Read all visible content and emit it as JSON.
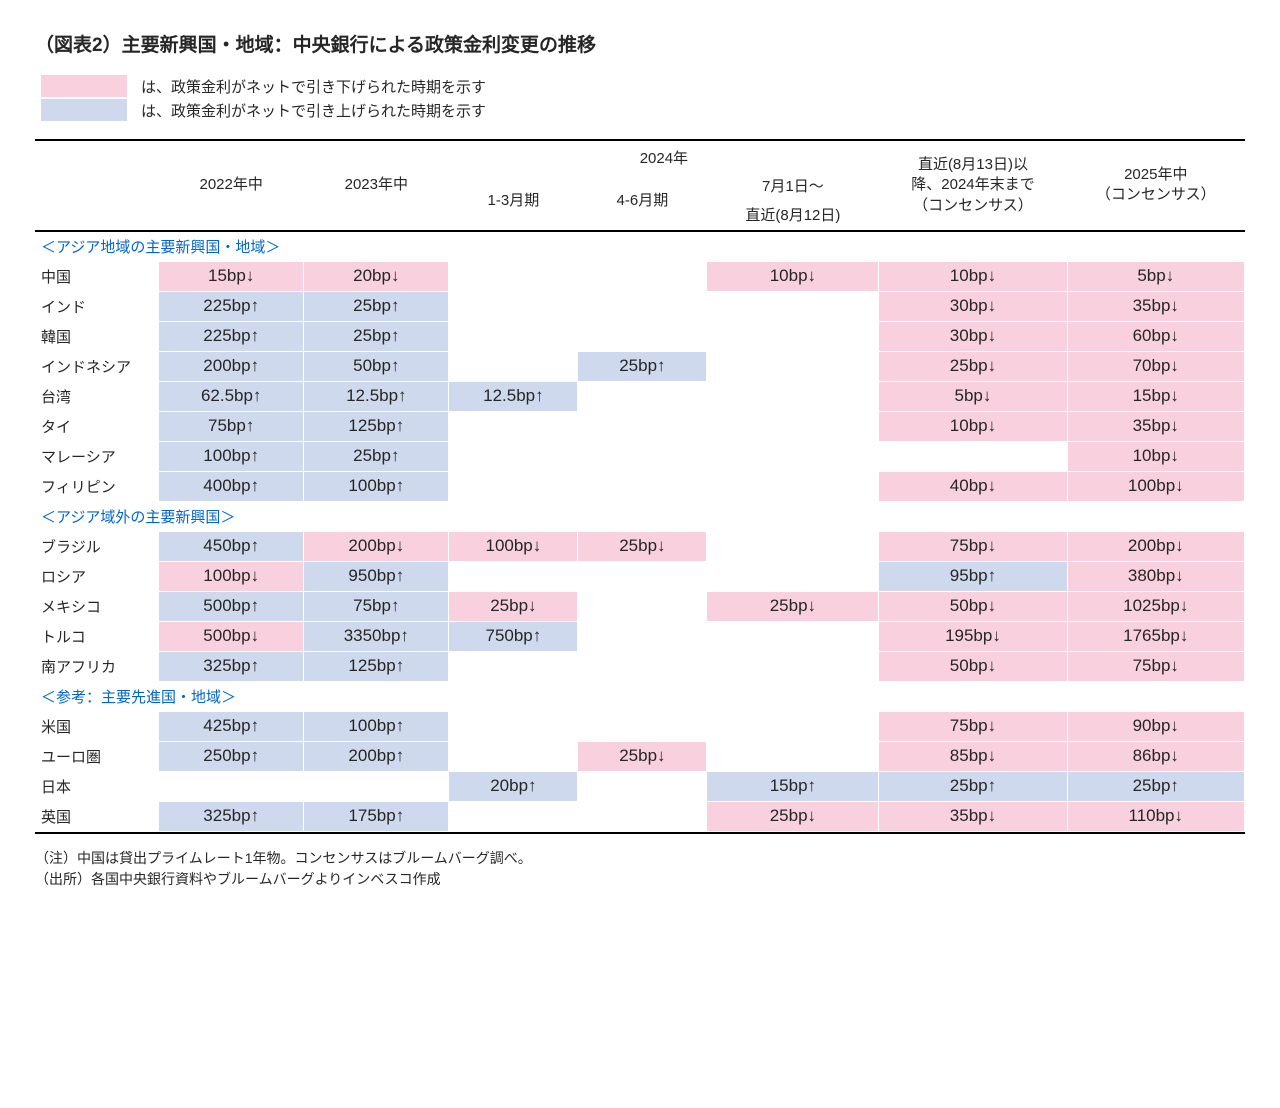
{
  "colors": {
    "down": "#f9d1de",
    "up": "#cfd9ed",
    "blank": "#ffffff",
    "section_text": "#0066cc"
  },
  "title": "（図表2）主要新興国・地域：中央銀行による政策金利変更の推移",
  "legend": {
    "down": "は、政策金利がネットで引き下げられた時期を示す",
    "up": "は、政策金利がネットで引き上げられた時期を示す"
  },
  "header": {
    "y22": "2022年中",
    "y23": "2023年中",
    "y24": "2024年",
    "q1": "1-3月期",
    "q2": "4-6月期",
    "q3a": "7月1日～",
    "q3b": "直近(8月12日)",
    "fc1a": "直近(8月13日)以",
    "fc1b": "降、2024年末まで",
    "fc1c": "（コンセンサス）",
    "fc2a": "2025年中",
    "fc2b": "（コンセンサス）"
  },
  "sections": [
    {
      "label": "＜アジア地域の主要新興国・地域＞",
      "rows": [
        {
          "name": "中国",
          "cells": [
            {
              "t": "15bp↓",
              "d": "down"
            },
            {
              "t": "20bp↓",
              "d": "down"
            },
            {
              "t": "",
              "d": "blank"
            },
            {
              "t": "",
              "d": "blank"
            },
            {
              "t": "10bp↓",
              "d": "down"
            },
            {
              "t": "10bp↓",
              "d": "down"
            },
            {
              "t": "5bp↓",
              "d": "down"
            }
          ]
        },
        {
          "name": "インド",
          "cells": [
            {
              "t": "225bp↑",
              "d": "up"
            },
            {
              "t": "25bp↑",
              "d": "up"
            },
            {
              "t": "",
              "d": "blank"
            },
            {
              "t": "",
              "d": "blank"
            },
            {
              "t": "",
              "d": "blank"
            },
            {
              "t": "30bp↓",
              "d": "down"
            },
            {
              "t": "35bp↓",
              "d": "down"
            }
          ]
        },
        {
          "name": "韓国",
          "cells": [
            {
              "t": "225bp↑",
              "d": "up"
            },
            {
              "t": "25bp↑",
              "d": "up"
            },
            {
              "t": "",
              "d": "blank"
            },
            {
              "t": "",
              "d": "blank"
            },
            {
              "t": "",
              "d": "blank"
            },
            {
              "t": "30bp↓",
              "d": "down"
            },
            {
              "t": "60bp↓",
              "d": "down"
            }
          ]
        },
        {
          "name": "インドネシア",
          "cells": [
            {
              "t": "200bp↑",
              "d": "up"
            },
            {
              "t": "50bp↑",
              "d": "up"
            },
            {
              "t": "",
              "d": "blank"
            },
            {
              "t": "25bp↑",
              "d": "up"
            },
            {
              "t": "",
              "d": "blank"
            },
            {
              "t": "25bp↓",
              "d": "down"
            },
            {
              "t": "70bp↓",
              "d": "down"
            }
          ]
        },
        {
          "name": "台湾",
          "cells": [
            {
              "t": "62.5bp↑",
              "d": "up"
            },
            {
              "t": "12.5bp↑",
              "d": "up"
            },
            {
              "t": "12.5bp↑",
              "d": "up"
            },
            {
              "t": "",
              "d": "blank"
            },
            {
              "t": "",
              "d": "blank"
            },
            {
              "t": "5bp↓",
              "d": "down"
            },
            {
              "t": "15bp↓",
              "d": "down"
            }
          ]
        },
        {
          "name": "タイ",
          "cells": [
            {
              "t": "75bp↑",
              "d": "up"
            },
            {
              "t": "125bp↑",
              "d": "up"
            },
            {
              "t": "",
              "d": "blank"
            },
            {
              "t": "",
              "d": "blank"
            },
            {
              "t": "",
              "d": "blank"
            },
            {
              "t": "10bp↓",
              "d": "down"
            },
            {
              "t": "35bp↓",
              "d": "down"
            }
          ]
        },
        {
          "name": "マレーシア",
          "cells": [
            {
              "t": "100bp↑",
              "d": "up"
            },
            {
              "t": "25bp↑",
              "d": "up"
            },
            {
              "t": "",
              "d": "blank"
            },
            {
              "t": "",
              "d": "blank"
            },
            {
              "t": "",
              "d": "blank"
            },
            {
              "t": "",
              "d": "blank"
            },
            {
              "t": "10bp↓",
              "d": "down"
            }
          ]
        },
        {
          "name": "フィリピン",
          "cells": [
            {
              "t": "400bp↑",
              "d": "up"
            },
            {
              "t": "100bp↑",
              "d": "up"
            },
            {
              "t": "",
              "d": "blank"
            },
            {
              "t": "",
              "d": "blank"
            },
            {
              "t": "",
              "d": "blank"
            },
            {
              "t": "40bp↓",
              "d": "down"
            },
            {
              "t": "100bp↓",
              "d": "down"
            }
          ]
        }
      ]
    },
    {
      "label": "＜アジア域外の主要新興国＞",
      "rows": [
        {
          "name": "ブラジル",
          "cells": [
            {
              "t": "450bp↑",
              "d": "up"
            },
            {
              "t": "200bp↓",
              "d": "down"
            },
            {
              "t": "100bp↓",
              "d": "down"
            },
            {
              "t": "25bp↓",
              "d": "down"
            },
            {
              "t": "",
              "d": "blank"
            },
            {
              "t": "75bp↓",
              "d": "down"
            },
            {
              "t": "200bp↓",
              "d": "down"
            }
          ]
        },
        {
          "name": "ロシア",
          "cells": [
            {
              "t": "100bp↓",
              "d": "down"
            },
            {
              "t": "950bp↑",
              "d": "up"
            },
            {
              "t": "",
              "d": "blank"
            },
            {
              "t": "",
              "d": "blank"
            },
            {
              "t": "",
              "d": "blank"
            },
            {
              "t": "95bp↑",
              "d": "up"
            },
            {
              "t": "380bp↓",
              "d": "down"
            }
          ]
        },
        {
          "name": "メキシコ",
          "cells": [
            {
              "t": "500bp↑",
              "d": "up"
            },
            {
              "t": "75bp↑",
              "d": "up"
            },
            {
              "t": "25bp↓",
              "d": "down"
            },
            {
              "t": "",
              "d": "blank"
            },
            {
              "t": "25bp↓",
              "d": "down"
            },
            {
              "t": "50bp↓",
              "d": "down"
            },
            {
              "t": "1025bp↓",
              "d": "down"
            }
          ]
        },
        {
          "name": "トルコ",
          "cells": [
            {
              "t": "500bp↓",
              "d": "down"
            },
            {
              "t": "3350bp↑",
              "d": "up"
            },
            {
              "t": "750bp↑",
              "d": "up"
            },
            {
              "t": "",
              "d": "blank"
            },
            {
              "t": "",
              "d": "blank"
            },
            {
              "t": "195bp↓",
              "d": "down"
            },
            {
              "t": "1765bp↓",
              "d": "down"
            }
          ]
        },
        {
          "name": "南アフリカ",
          "cells": [
            {
              "t": "325bp↑",
              "d": "up"
            },
            {
              "t": "125bp↑",
              "d": "up"
            },
            {
              "t": "",
              "d": "blank"
            },
            {
              "t": "",
              "d": "blank"
            },
            {
              "t": "",
              "d": "blank"
            },
            {
              "t": "50bp↓",
              "d": "down"
            },
            {
              "t": "75bp↓",
              "d": "down"
            }
          ]
        }
      ]
    },
    {
      "label": "＜参考：主要先進国・地域＞",
      "rows": [
        {
          "name": "米国",
          "cells": [
            {
              "t": "425bp↑",
              "d": "up"
            },
            {
              "t": "100bp↑",
              "d": "up"
            },
            {
              "t": "",
              "d": "blank"
            },
            {
              "t": "",
              "d": "blank"
            },
            {
              "t": "",
              "d": "blank"
            },
            {
              "t": "75bp↓",
              "d": "down"
            },
            {
              "t": "90bp↓",
              "d": "down"
            }
          ]
        },
        {
          "name": "ユーロ圏",
          "cells": [
            {
              "t": "250bp↑",
              "d": "up"
            },
            {
              "t": "200bp↑",
              "d": "up"
            },
            {
              "t": "",
              "d": "blank"
            },
            {
              "t": "25bp↓",
              "d": "down"
            },
            {
              "t": "",
              "d": "blank"
            },
            {
              "t": "85bp↓",
              "d": "down"
            },
            {
              "t": "86bp↓",
              "d": "down"
            }
          ]
        },
        {
          "name": "日本",
          "cells": [
            {
              "t": "",
              "d": "blank"
            },
            {
              "t": "",
              "d": "blank"
            },
            {
              "t": "20bp↑",
              "d": "up"
            },
            {
              "t": "",
              "d": "blank"
            },
            {
              "t": "15bp↑",
              "d": "up"
            },
            {
              "t": "25bp↑",
              "d": "up"
            },
            {
              "t": "25bp↑",
              "d": "up"
            }
          ]
        },
        {
          "name": "英国",
          "cells": [
            {
              "t": "325bp↑",
              "d": "up"
            },
            {
              "t": "175bp↑",
              "d": "up"
            },
            {
              "t": "",
              "d": "blank"
            },
            {
              "t": "",
              "d": "blank"
            },
            {
              "t": "25bp↓",
              "d": "down"
            },
            {
              "t": "35bp↓",
              "d": "down"
            },
            {
              "t": "110bp↓",
              "d": "down"
            }
          ]
        }
      ]
    }
  ],
  "notes": {
    "n1": "（注）中国は貸出プライムレート1年物。コンセンサスはブルームバーグ調べ。",
    "n2": "（出所）各国中央銀行資料やブルームバーグよりインベスコ作成"
  }
}
